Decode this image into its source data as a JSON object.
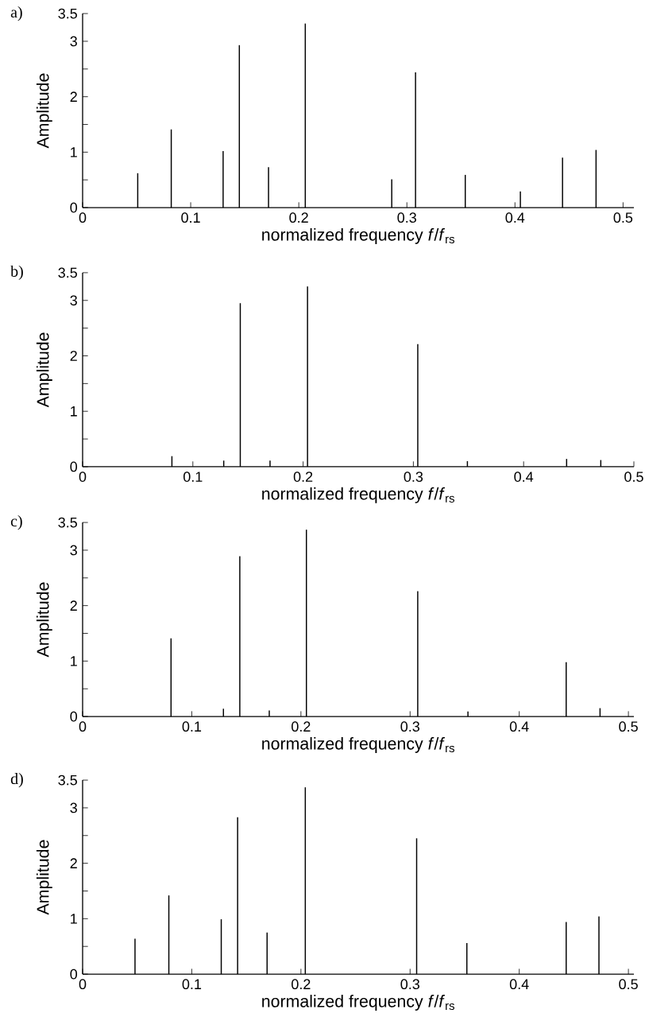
{
  "chart_data": [
    {
      "type": "bar",
      "title": "a)",
      "xlabel": "normalized frequency *f*/*f*$_{rs}$",
      "ylabel": "Amplitude",
      "x": [
        0.051,
        0.082,
        0.13,
        0.145,
        0.172,
        0.206,
        0.286,
        0.308,
        0.354,
        0.405,
        0.444,
        0.475
      ],
      "values": [
        0.62,
        1.41,
        1.02,
        2.93,
        0.73,
        3.32,
        0.51,
        2.44,
        0.59,
        0.29,
        0.9,
        1.04
      ],
      "color": "#000000",
      "xlim": [
        0,
        0.51
      ],
      "ylim": [
        0,
        3.5
      ],
      "xticks": [
        0,
        0.1,
        0.2,
        0.3,
        0.4,
        0.5
      ],
      "yticks": [
        0,
        {
          "value": 0.5,
          "label": null
        },
        1,
        {
          "value": 1.5,
          "label": null
        },
        2,
        {
          "value": 2.5,
          "label": null
        },
        3,
        3.5
      ]
    },
    {
      "type": "bar",
      "title": "b)",
      "xlabel": "normalized frequency *f*/*f*$_{rs}$",
      "ylabel": "Amplitude",
      "x": [
        0.081,
        0.128,
        0.143,
        0.17,
        0.204,
        0.304,
        0.349,
        0.439,
        0.47
      ],
      "values": [
        0.19,
        0.11,
        2.95,
        0.11,
        3.25,
        2.21,
        0.1,
        0.14,
        0.12
      ],
      "color": "#000000",
      "xlim": [
        0,
        0.5
      ],
      "ylim": [
        0,
        3.5
      ],
      "xticks": [
        0,
        0.1,
        0.2,
        0.3,
        0.4,
        0.5
      ],
      "yticks": [
        0,
        {
          "value": 0.5,
          "label": null
        },
        1,
        {
          "value": 1.5,
          "label": null
        },
        2,
        {
          "value": 2.5,
          "label": null
        },
        3,
        3.5
      ]
    },
    {
      "type": "bar",
      "title": "c)",
      "xlabel": "normalized frequency *f*/*f*$_{rs}$",
      "ylabel": "Amplitude",
      "x": [
        0.081,
        0.129,
        0.144,
        0.171,
        0.205,
        0.307,
        0.353,
        0.443,
        0.474
      ],
      "values": [
        1.41,
        0.14,
        2.89,
        0.11,
        3.37,
        2.26,
        0.09,
        0.98,
        0.15
      ],
      "color": "#000000",
      "xlim": [
        0,
        0.505
      ],
      "ylim": [
        0,
        3.5
      ],
      "xticks": [
        0,
        0.1,
        0.2,
        0.3,
        0.4,
        0.5
      ],
      "yticks": [
        0,
        {
          "value": 0.5,
          "label": null
        },
        1,
        {
          "value": 1.5,
          "label": null
        },
        2,
        {
          "value": 2.5,
          "label": null
        },
        3,
        3.5
      ]
    },
    {
      "type": "bar",
      "title": "d)",
      "xlabel": "normalized frequency *f*/*f*$_{rs}$",
      "ylabel": "Amplitude",
      "x": [
        0.048,
        0.079,
        0.127,
        0.142,
        0.169,
        0.204,
        0.306,
        0.352,
        0.443,
        0.473
      ],
      "values": [
        0.64,
        1.42,
        0.99,
        2.83,
        0.75,
        3.37,
        2.45,
        0.56,
        0.94,
        1.04
      ],
      "color": "#000000",
      "xlim": [
        0,
        0.505
      ],
      "ylim": [
        0,
        3.5
      ],
      "xticks": [
        0,
        0.1,
        0.2,
        0.3,
        0.4,
        0.5
      ],
      "yticks": [
        0,
        {
          "value": 0.5,
          "label": null
        },
        1,
        {
          "value": 1.5,
          "label": null
        },
        2,
        {
          "value": 2.5,
          "label": null
        },
        3,
        3.5
      ]
    }
  ]
}
